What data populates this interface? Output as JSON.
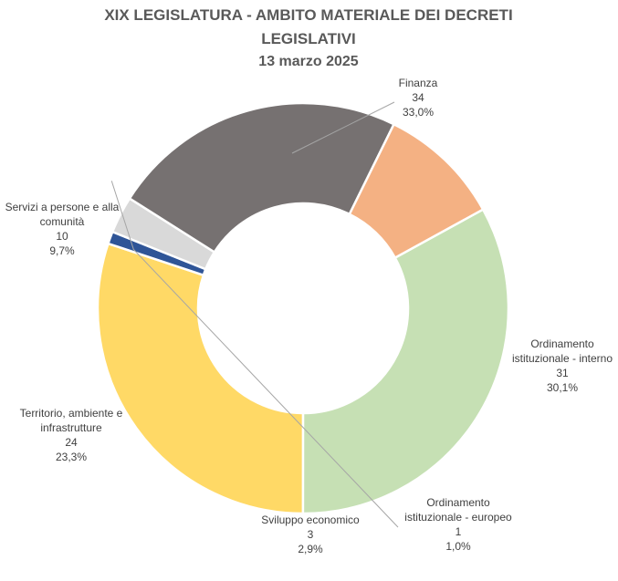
{
  "chart_data": {
    "type": "pie",
    "variant": "donut",
    "title_lines": [
      "XIX LEGISLATURA - AMBITO MATERIALE DEI DECRETI",
      "LEGISLATIVI",
      "13 marzo 2025"
    ],
    "legend": "none",
    "slices": [
      {
        "name_lines": [
          "Finanza"
        ],
        "value": 34,
        "percent": "33,0%",
        "color": "#C6E0B4"
      },
      {
        "name_lines": [
          "Ordinamento",
          "istituzionale - interno"
        ],
        "value": 31,
        "percent": "30,1%",
        "color": "#FFD966"
      },
      {
        "name_lines": [
          "Ordinamento",
          "istituzionale -  europeo"
        ],
        "value": 1,
        "percent": "1,0%",
        "color": "#2F5597"
      },
      {
        "name_lines": [
          "Sviluppo economico"
        ],
        "value": 3,
        "percent": "2,9%",
        "color": "#D9D9D9"
      },
      {
        "name_lines": [
          "Territorio, ambiente e",
          "infrastrutture"
        ],
        "value": 24,
        "percent": "23,3%",
        "color": "#767171"
      },
      {
        "name_lines": [
          "Servizi a persone e alla",
          "comunità"
        ],
        "value": 10,
        "percent": "9,7%",
        "color": "#F4B183"
      }
    ]
  }
}
